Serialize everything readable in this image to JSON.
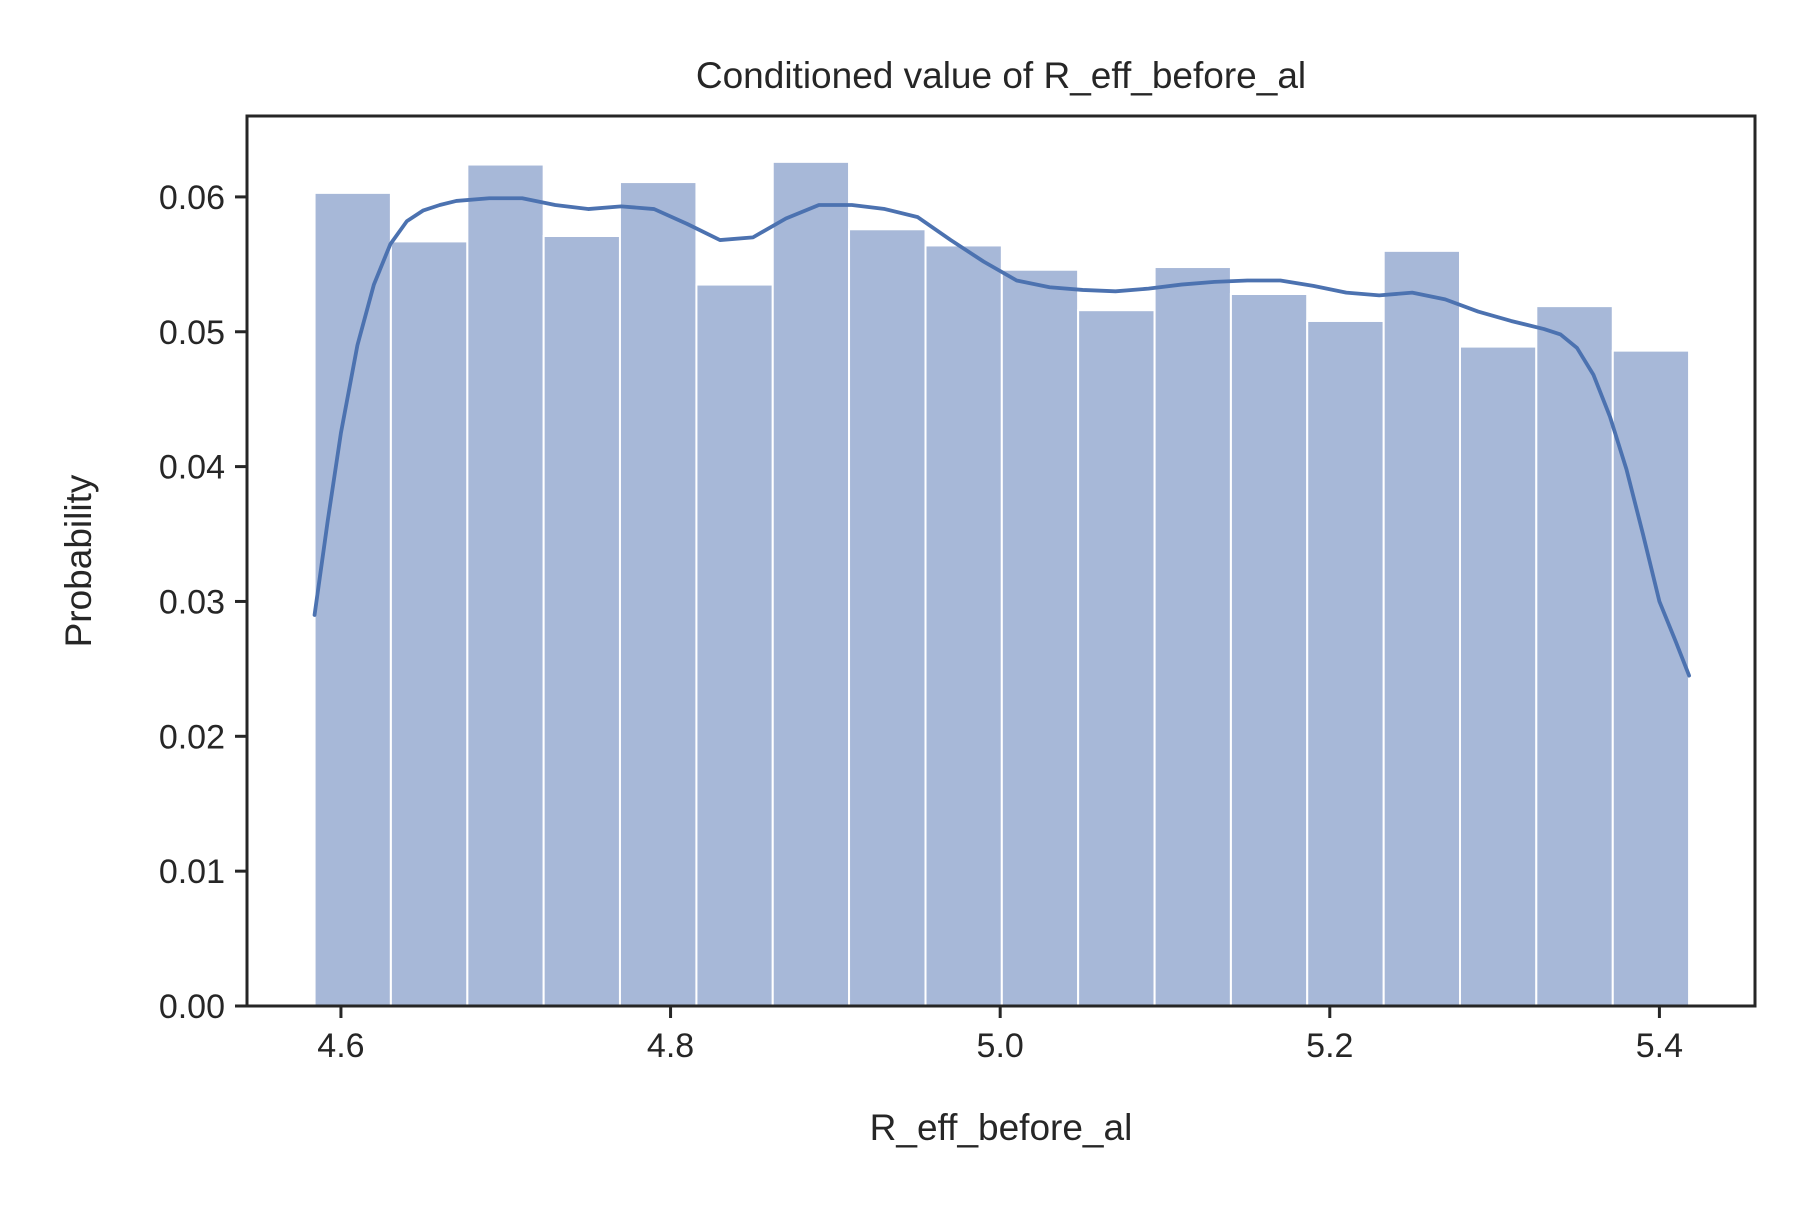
{
  "chart_data": {
    "type": "bar",
    "title": "Conditioned value of R_eff_before_al",
    "xlabel": "R_eff_before_al",
    "ylabel": "Probability",
    "xlim": [
      4.543,
      5.458
    ],
    "ylim": [
      0.0,
      0.066
    ],
    "xticks": [
      4.6,
      4.8,
      5.0,
      5.2,
      5.4
    ],
    "xtick_labels": [
      "4.6",
      "4.8",
      "5.0",
      "5.2",
      "5.4"
    ],
    "yticks": [
      0.0,
      0.01,
      0.02,
      0.03,
      0.04,
      0.05,
      0.06
    ],
    "ytick_labels": [
      "0.00",
      "0.01",
      "0.02",
      "0.03",
      "0.04",
      "0.05",
      "0.06"
    ],
    "grid": false,
    "bin_edges": [
      4.584,
      4.6303,
      4.6767,
      4.723,
      4.7693,
      4.8157,
      4.862,
      4.9083,
      4.9547,
      5.001,
      5.0473,
      5.0937,
      5.14,
      5.1863,
      5.2327,
      5.279,
      5.3253,
      5.3717,
      5.418
    ],
    "values": [
      0.0603,
      0.0567,
      0.0624,
      0.0571,
      0.0611,
      0.0535,
      0.0626,
      0.0576,
      0.0564,
      0.0546,
      0.0516,
      0.0548,
      0.0528,
      0.0508,
      0.056,
      0.0489,
      0.0519,
      0.0486
    ],
    "kde": {
      "x": [
        4.584,
        4.592,
        4.6,
        4.61,
        4.62,
        4.63,
        4.64,
        4.65,
        4.66,
        4.67,
        4.69,
        4.71,
        4.73,
        4.75,
        4.77,
        4.79,
        4.81,
        4.83,
        4.85,
        4.87,
        4.89,
        4.91,
        4.93,
        4.95,
        4.97,
        4.99,
        5.01,
        5.03,
        5.05,
        5.07,
        5.09,
        5.11,
        5.13,
        5.15,
        5.17,
        5.19,
        5.21,
        5.23,
        5.25,
        5.27,
        5.29,
        5.31,
        5.33,
        5.34,
        5.35,
        5.36,
        5.37,
        5.38,
        5.39,
        5.4,
        5.41,
        5.418
      ],
      "y": [
        0.029,
        0.036,
        0.0425,
        0.049,
        0.0535,
        0.0565,
        0.0582,
        0.059,
        0.0594,
        0.0597,
        0.0599,
        0.0599,
        0.0594,
        0.0591,
        0.0593,
        0.0591,
        0.058,
        0.0568,
        0.057,
        0.0584,
        0.0594,
        0.0594,
        0.0591,
        0.0585,
        0.0568,
        0.0552,
        0.0538,
        0.0533,
        0.0531,
        0.053,
        0.0532,
        0.0535,
        0.0537,
        0.0538,
        0.0538,
        0.0534,
        0.0529,
        0.0527,
        0.0529,
        0.0524,
        0.0515,
        0.0508,
        0.0502,
        0.0498,
        0.0488,
        0.0468,
        0.0437,
        0.0398,
        0.035,
        0.03,
        0.027,
        0.0245
      ]
    },
    "colors": {
      "bar_fill": "#a7b8d8",
      "bar_edge": "#ffffff",
      "kde_line": "#4c72b0",
      "axes": "#262626",
      "text": "#262626"
    }
  }
}
